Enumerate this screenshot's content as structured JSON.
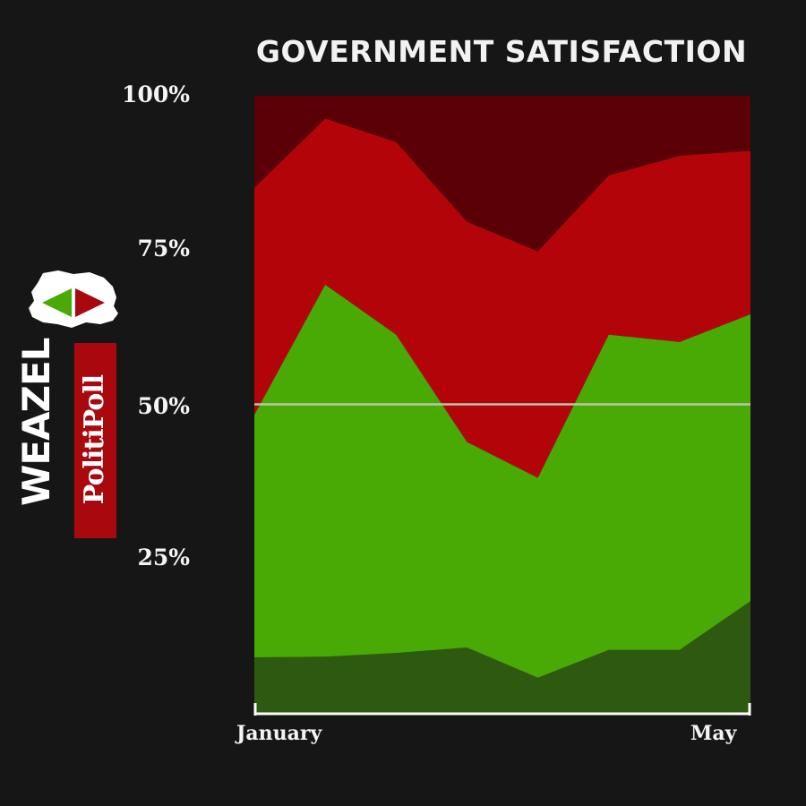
{
  "title": "GOVERNMENT SATISFACTION",
  "logo": {
    "brand": "WEAZEL",
    "sub": "PolitiPoll"
  },
  "colors": {
    "background": "#161616",
    "very_dissatisfied": "#5a0006",
    "dissatisfied": "#b30509",
    "satisfied": "#49aa06",
    "very_satisfied": "#2d5a10",
    "midline": "#b8c7a8"
  },
  "chart_data": {
    "type": "area",
    "stacked": true,
    "x": [
      "January",
      "",
      "",
      "",
      "",
      "",
      "",
      "May"
    ],
    "x_tick_labels": [
      "January",
      "May"
    ],
    "y_tick_labels": [
      "25%",
      "50%",
      "75%",
      "100%"
    ],
    "ylim": [
      0,
      100
    ],
    "reference_line": 50,
    "series": [
      {
        "color": "#2d5a10",
        "values": [
          9.0,
          9.1,
          9.7,
          10.6,
          5.7,
          10.2,
          10.2,
          18.1
        ]
      },
      {
        "color": "#49aa06",
        "values": [
          39.3,
          60.3,
          51.6,
          33.3,
          32.4,
          51.1,
          49.9,
          46.5
        ]
      },
      {
        "color": "#b30509",
        "values": [
          36.8,
          26.9,
          31.2,
          35.7,
          36.7,
          25.8,
          30.2,
          26.5
        ]
      },
      {
        "color": "#5a0006",
        "values": [
          14.9,
          3.7,
          7.5,
          20.4,
          25.2,
          12.9,
          9.7,
          8.9
        ]
      }
    ]
  }
}
